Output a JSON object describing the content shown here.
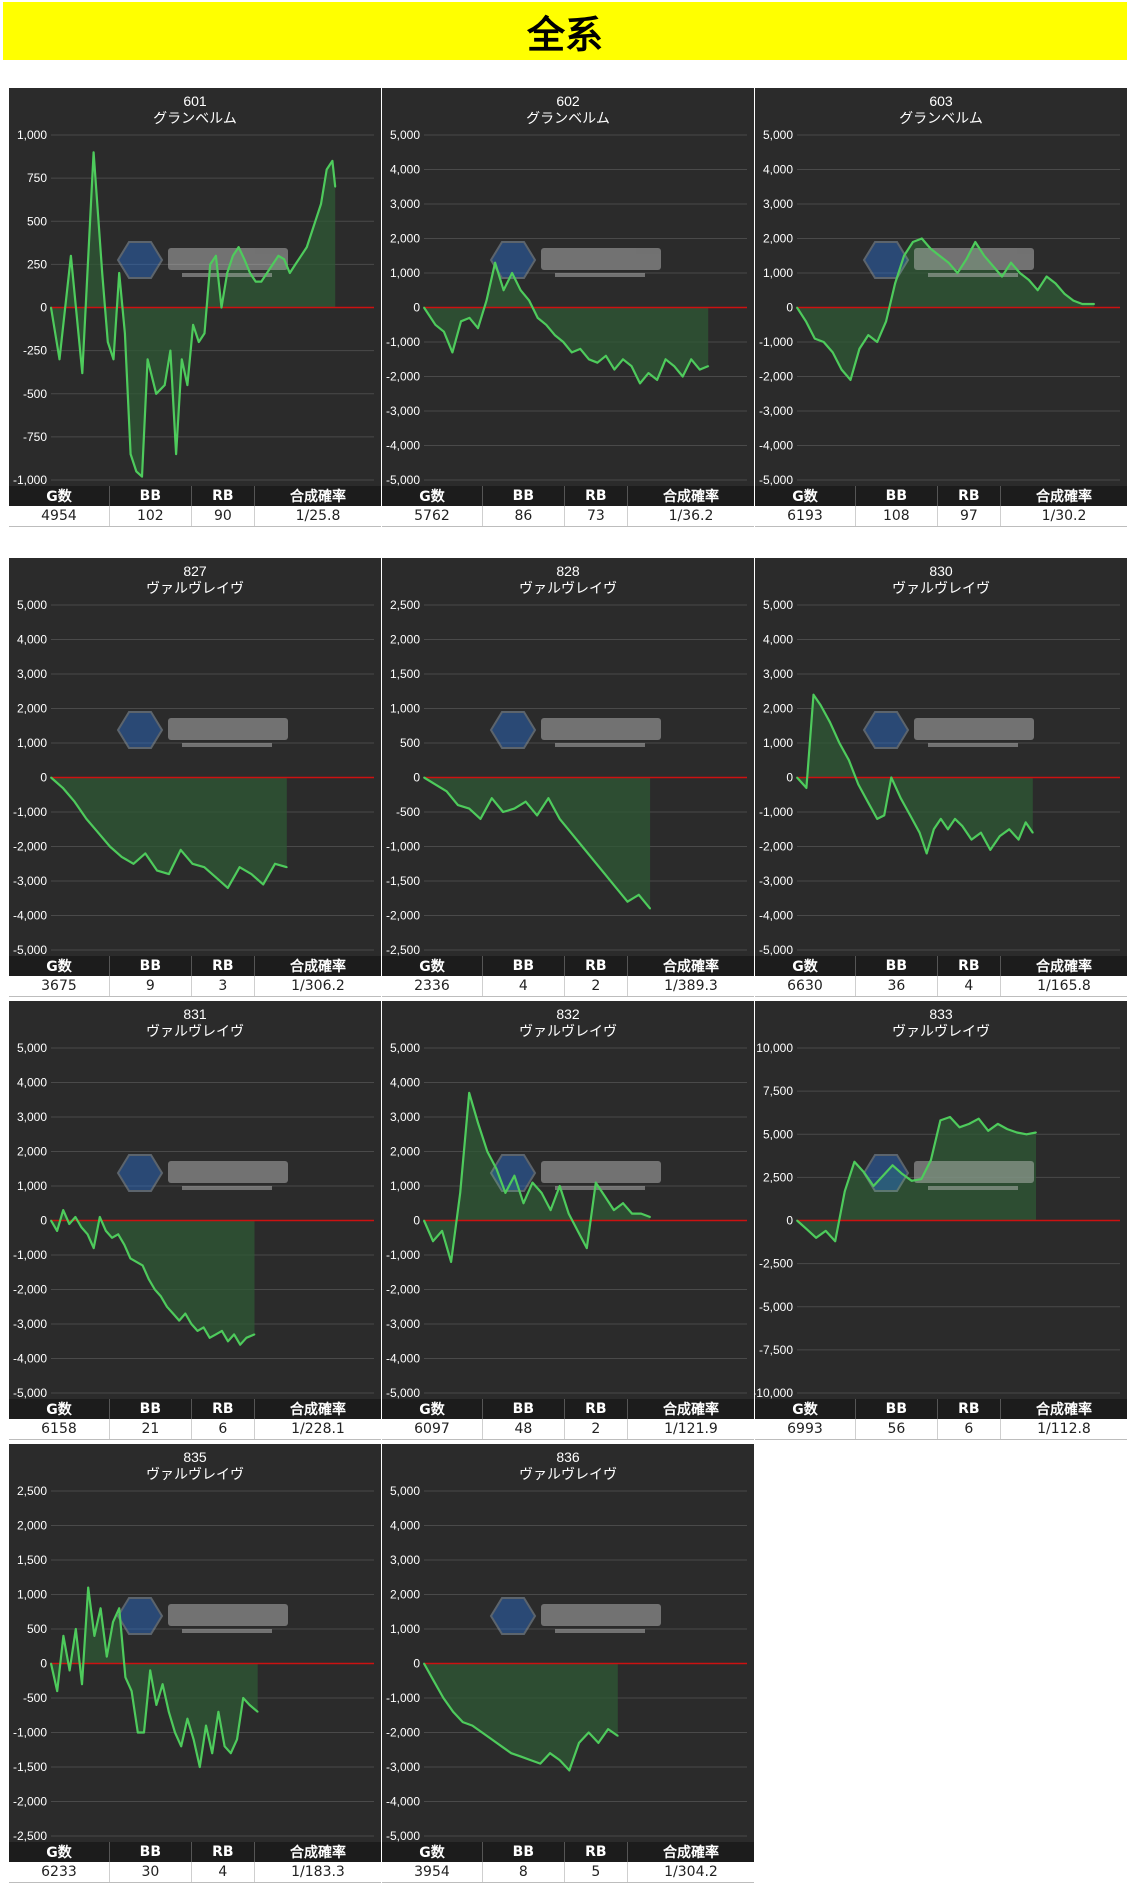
{
  "page_title": "全系",
  "colors": {
    "banner": "#ffff00",
    "panel_bg": "#2b2b2b",
    "line": "#4ecb5c",
    "fill": "#2f5a36",
    "zero_line": "#cc1111",
    "grid": "#4a4a4a"
  },
  "table_headers": [
    "G数",
    "BB",
    "RB",
    "合成確率"
  ],
  "chart_data": [
    {
      "type": "area",
      "machine_no": "601",
      "model": "グランベルム",
      "ylim": [
        -1000,
        1000
      ],
      "yticks": [
        "1,000",
        "750",
        "500",
        "250",
        "0",
        "-250",
        "-500",
        "-750",
        "-1,000"
      ],
      "stats": [
        "4954",
        "102",
        "90",
        "1/25.8"
      ],
      "x": [
        0,
        0.03,
        0.07,
        0.11,
        0.15,
        0.18,
        0.2,
        0.22,
        0.24,
        0.26,
        0.28,
        0.3,
        0.32,
        0.34,
        0.37,
        0.4,
        0.42,
        0.44,
        0.46,
        0.48,
        0.5,
        0.52,
        0.54,
        0.56,
        0.58,
        0.6,
        0.62,
        0.64,
        0.66,
        0.68,
        0.7,
        0.72,
        0.74,
        0.76,
        0.78,
        0.8,
        0.82,
        0.84,
        0.86,
        0.88,
        0.9,
        0.92,
        0.93,
        0.95,
        0.97,
        0.99,
        1.0
      ],
      "y": [
        0,
        -300,
        300,
        -380,
        900,
        200,
        -200,
        -300,
        200,
        -150,
        -850,
        -950,
        -980,
        -300,
        -500,
        -450,
        -250,
        -850,
        -300,
        -450,
        -100,
        -200,
        -150,
        250,
        300,
        0,
        200,
        300,
        350,
        280,
        200,
        150,
        150,
        200,
        250,
        300,
        280,
        200,
        250,
        300,
        350,
        450,
        500,
        600,
        800,
        850,
        700
      ]
    },
    {
      "type": "area",
      "machine_no": "602",
      "model": "グランベルム",
      "ylim": [
        -5000,
        5000
      ],
      "yticks": [
        "5,000",
        "4,000",
        "3,000",
        "2,000",
        "1,000",
        "0",
        "-1,000",
        "-2,000",
        "-3,000",
        "-4,000",
        "-5,000"
      ],
      "stats": [
        "5762",
        "86",
        "73",
        "1/36.2"
      ],
      "x": [
        0,
        0.04,
        0.07,
        0.1,
        0.13,
        0.16,
        0.19,
        0.22,
        0.25,
        0.28,
        0.31,
        0.34,
        0.37,
        0.4,
        0.43,
        0.46,
        0.49,
        0.52,
        0.55,
        0.58,
        0.61,
        0.64,
        0.67,
        0.7,
        0.73,
        0.76,
        0.79,
        0.82,
        0.85,
        0.88,
        0.91,
        0.94,
        0.97,
        1.0
      ],
      "y": [
        0,
        -500,
        -700,
        -1300,
        -400,
        -300,
        -600,
        200,
        1300,
        500,
        1000,
        500,
        200,
        -300,
        -500,
        -800,
        -1000,
        -1300,
        -1200,
        -1500,
        -1600,
        -1400,
        -1800,
        -1500,
        -1700,
        -2200,
        -1900,
        -2100,
        -1500,
        -1700,
        -2000,
        -1500,
        -1800,
        -1700
      ]
    },
    {
      "type": "area",
      "machine_no": "603",
      "model": "グランベルム",
      "ylim": [
        -5000,
        5000
      ],
      "yticks": [
        "5,000",
        "4,000",
        "3,000",
        "2,000",
        "1,000",
        "0",
        "-1,000",
        "-2,000",
        "-3,000",
        "-4,000",
        "-5,000"
      ],
      "stats": [
        "6193",
        "108",
        "97",
        "1/30.2"
      ],
      "x": [
        0,
        0.03,
        0.06,
        0.09,
        0.12,
        0.15,
        0.18,
        0.21,
        0.24,
        0.27,
        0.3,
        0.33,
        0.36,
        0.39,
        0.42,
        0.45,
        0.48,
        0.51,
        0.54,
        0.57,
        0.6,
        0.63,
        0.66,
        0.69,
        0.72,
        0.75,
        0.78,
        0.81,
        0.84,
        0.87,
        0.9,
        0.93,
        0.96,
        1.0
      ],
      "y": [
        0,
        -400,
        -900,
        -1000,
        -1300,
        -1800,
        -2100,
        -1200,
        -800,
        -1000,
        -400,
        700,
        1500,
        1900,
        2000,
        1700,
        1500,
        1300,
        1000,
        1400,
        1900,
        1500,
        1200,
        900,
        1300,
        1000,
        800,
        500,
        900,
        700,
        400,
        200,
        100,
        100
      ]
    },
    {
      "type": "area",
      "machine_no": "827",
      "model": "ヴァルヴレイヴ",
      "ylim": [
        -5000,
        5000
      ],
      "yticks": [
        "5,000",
        "4,000",
        "3,000",
        "2,000",
        "1,000",
        "0",
        "-1,000",
        "-2,000",
        "-3,000",
        "-4,000",
        "-5,000"
      ],
      "stats": [
        "3675",
        "9",
        "3",
        "1/306.2"
      ],
      "x": [
        0,
        0.05,
        0.1,
        0.15,
        0.2,
        0.25,
        0.3,
        0.35,
        0.4,
        0.45,
        0.5,
        0.55,
        0.6,
        0.65,
        0.7,
        0.75,
        0.8,
        0.85,
        0.9,
        0.95,
        1.0
      ],
      "y": [
        0,
        -300,
        -700,
        -1200,
        -1600,
        -2000,
        -2300,
        -2500,
        -2200,
        -2700,
        -2800,
        -2100,
        -2500,
        -2600,
        -2900,
        -3200,
        -2600,
        -2800,
        -3100,
        -2500,
        -2600
      ]
    },
    {
      "type": "area",
      "machine_no": "828",
      "model": "ヴァルヴレイヴ",
      "ylim": [
        -2500,
        2500
      ],
      "yticks": [
        "2,500",
        "2,000",
        "1,500",
        "1,000",
        "500",
        "0",
        "-500",
        "-1,000",
        "-1,500",
        "-2,000",
        "-2,500"
      ],
      "stats": [
        "2336",
        "4",
        "2",
        "1/389.3"
      ],
      "x": [
        0,
        0.05,
        0.1,
        0.15,
        0.2,
        0.25,
        0.3,
        0.35,
        0.4,
        0.45,
        0.5,
        0.55,
        0.6,
        0.65,
        0.7,
        0.75,
        0.8,
        0.85,
        0.9,
        0.95,
        1.0
      ],
      "y": [
        0,
        -100,
        -200,
        -400,
        -450,
        -600,
        -300,
        -500,
        -450,
        -350,
        -550,
        -300,
        -600,
        -800,
        -1000,
        -1200,
        -1400,
        -1600,
        -1800,
        -1700,
        -1900
      ]
    },
    {
      "type": "area",
      "machine_no": "830",
      "model": "ヴァルヴレイヴ",
      "ylim": [
        -5000,
        5000
      ],
      "yticks": [
        "5,000",
        "4,000",
        "3,000",
        "2,000",
        "1,000",
        "0",
        "-1,000",
        "-2,000",
        "-3,000",
        "-4,000",
        "-5,000"
      ],
      "stats": [
        "6630",
        "36",
        "4",
        "1/165.8"
      ],
      "x": [
        0,
        0.04,
        0.07,
        0.1,
        0.14,
        0.18,
        0.22,
        0.26,
        0.3,
        0.34,
        0.37,
        0.4,
        0.44,
        0.48,
        0.52,
        0.55,
        0.58,
        0.61,
        0.64,
        0.67,
        0.7,
        0.74,
        0.78,
        0.82,
        0.86,
        0.9,
        0.94,
        0.97,
        1.0
      ],
      "y": [
        0,
        -300,
        2400,
        2100,
        1600,
        1000,
        500,
        -200,
        -700,
        -1200,
        -1100,
        0,
        -600,
        -1100,
        -1600,
        -2200,
        -1500,
        -1200,
        -1500,
        -1200,
        -1400,
        -1800,
        -1600,
        -2100,
        -1700,
        -1500,
        -1800,
        -1300,
        -1600
      ]
    },
    {
      "type": "area",
      "machine_no": "831",
      "model": "ヴァルヴレイヴ",
      "ylim": [
        -5000,
        5000
      ],
      "yticks": [
        "5,000",
        "4,000",
        "3,000",
        "2,000",
        "1,000",
        "0",
        "-1,000",
        "-2,000",
        "-3,000",
        "-4,000",
        "-5,000"
      ],
      "stats": [
        "6158",
        "21",
        "6",
        "1/228.1"
      ],
      "x": [
        0,
        0.03,
        0.06,
        0.09,
        0.12,
        0.15,
        0.18,
        0.21,
        0.24,
        0.27,
        0.3,
        0.33,
        0.36,
        0.39,
        0.42,
        0.45,
        0.48,
        0.51,
        0.54,
        0.57,
        0.6,
        0.63,
        0.66,
        0.69,
        0.72,
        0.75,
        0.78,
        0.81,
        0.84,
        0.87,
        0.9,
        0.93,
        0.96,
        1.0
      ],
      "y": [
        0,
        -300,
        300,
        -100,
        100,
        -200,
        -400,
        -800,
        100,
        -300,
        -500,
        -400,
        -700,
        -1100,
        -1200,
        -1300,
        -1700,
        -2000,
        -2200,
        -2500,
        -2700,
        -2900,
        -2700,
        -3000,
        -3200,
        -3100,
        -3400,
        -3300,
        -3200,
        -3500,
        -3300,
        -3600,
        -3400,
        -3300
      ]
    },
    {
      "type": "area",
      "machine_no": "832",
      "model": "ヴァルヴレイヴ",
      "ylim": [
        -5000,
        5000
      ],
      "yticks": [
        "5,000",
        "4,000",
        "3,000",
        "2,000",
        "1,000",
        "0",
        "-1,000",
        "-2,000",
        "-3,000",
        "-4,000",
        "-5,000"
      ],
      "stats": [
        "6097",
        "48",
        "2",
        "1/121.9"
      ],
      "x": [
        0,
        0.04,
        0.08,
        0.12,
        0.16,
        0.2,
        0.24,
        0.28,
        0.32,
        0.36,
        0.4,
        0.44,
        0.48,
        0.52,
        0.56,
        0.6,
        0.64,
        0.68,
        0.72,
        0.76,
        0.8,
        0.84,
        0.88,
        0.92,
        0.96,
        1.0
      ],
      "y": [
        0,
        -600,
        -300,
        -1200,
        800,
        3700,
        2800,
        2000,
        1500,
        800,
        1300,
        500,
        1100,
        800,
        300,
        1000,
        200,
        -300,
        -800,
        1100,
        700,
        300,
        500,
        200,
        200,
        100
      ]
    },
    {
      "type": "area",
      "machine_no": "833",
      "model": "ヴァルヴレイヴ",
      "ylim": [
        -10000,
        10000
      ],
      "yticks": [
        "10,000",
        "7,500",
        "5,000",
        "2,500",
        "0",
        "-2,500",
        "-5,000",
        "-7,500",
        "-10,000"
      ],
      "stats": [
        "6993",
        "56",
        "6",
        "1/112.8"
      ],
      "x": [
        0,
        0.04,
        0.08,
        0.12,
        0.16,
        0.2,
        0.24,
        0.28,
        0.32,
        0.36,
        0.4,
        0.44,
        0.48,
        0.52,
        0.56,
        0.6,
        0.64,
        0.68,
        0.72,
        0.76,
        0.8,
        0.84,
        0.88,
        0.92,
        0.96,
        1.0
      ],
      "y": [
        0,
        -500,
        -1000,
        -600,
        -1200,
        1700,
        3400,
        2800,
        2000,
        2600,
        3200,
        2700,
        2300,
        2400,
        3500,
        5800,
        6000,
        5400,
        5600,
        5900,
        5200,
        5600,
        5300,
        5100,
        5000,
        5100
      ]
    },
    {
      "type": "area",
      "machine_no": "835",
      "model": "ヴァルヴレイヴ",
      "ylim": [
        -2500,
        2500
      ],
      "yticks": [
        "2,500",
        "2,000",
        "1,500",
        "1,000",
        "500",
        "0",
        "-500",
        "-1,000",
        "-1,500",
        "-2,000",
        "-2,500"
      ],
      "stats": [
        "6233",
        "30",
        "4",
        "1/183.3"
      ],
      "x": [
        0,
        0.03,
        0.06,
        0.09,
        0.12,
        0.15,
        0.18,
        0.21,
        0.24,
        0.27,
        0.3,
        0.33,
        0.36,
        0.39,
        0.42,
        0.45,
        0.48,
        0.51,
        0.54,
        0.57,
        0.6,
        0.63,
        0.66,
        0.69,
        0.72,
        0.75,
        0.78,
        0.81,
        0.84,
        0.87,
        0.9,
        0.93,
        0.96,
        1.0
      ],
      "y": [
        0,
        -400,
        400,
        -100,
        500,
        -300,
        1100,
        400,
        800,
        100,
        600,
        800,
        -200,
        -400,
        -1000,
        -1000,
        -100,
        -600,
        -300,
        -700,
        -1000,
        -1200,
        -800,
        -1100,
        -1500,
        -900,
        -1300,
        -700,
        -1200,
        -1300,
        -1100,
        -500,
        -600,
        -700
      ]
    },
    {
      "type": "area",
      "machine_no": "836",
      "model": "ヴァルヴレイヴ",
      "ylim": [
        -5000,
        5000
      ],
      "yticks": [
        "5,000",
        "4,000",
        "3,000",
        "2,000",
        "1,000",
        "0",
        "-1,000",
        "-2,000",
        "-3,000",
        "-4,000",
        "-5,000"
      ],
      "stats": [
        "3954",
        "8",
        "5",
        "1/304.2"
      ],
      "x": [
        0,
        0.05,
        0.1,
        0.15,
        0.2,
        0.25,
        0.3,
        0.35,
        0.4,
        0.45,
        0.5,
        0.55,
        0.6,
        0.65,
        0.7,
        0.75,
        0.8,
        0.85,
        0.9,
        0.95,
        1.0
      ],
      "y": [
        0,
        -500,
        -1000,
        -1400,
        -1700,
        -1800,
        -2000,
        -2200,
        -2400,
        -2600,
        -2700,
        -2800,
        -2900,
        -2600,
        -2800,
        -3100,
        -2300,
        -2000,
        -2300,
        -1900,
        -2100
      ]
    }
  ]
}
